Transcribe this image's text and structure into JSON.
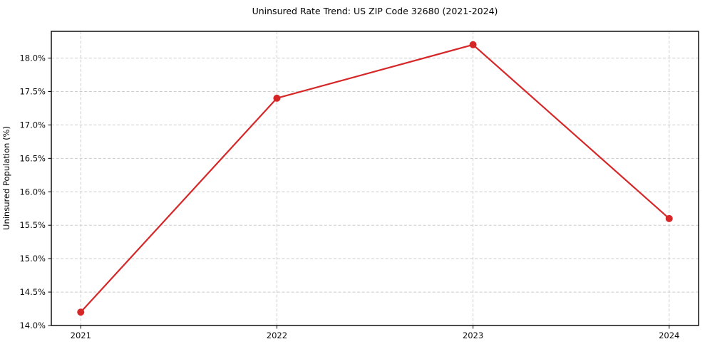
{
  "chart_data": {
    "type": "line",
    "title": "Uninsured Rate Trend: US ZIP Code 32680 (2021-2024)",
    "xlabel": "",
    "ylabel": "Uninsured Population (%)",
    "x": [
      2021,
      2022,
      2023,
      2024
    ],
    "xtick_labels": [
      "2021",
      "2022",
      "2023",
      "2024"
    ],
    "series": [
      {
        "name": "Uninsured rate",
        "values": [
          14.2,
          17.4,
          18.2,
          15.6
        ]
      }
    ],
    "yticks": [
      14.0,
      14.5,
      15.0,
      15.5,
      16.0,
      16.5,
      17.0,
      17.5,
      18.0
    ],
    "ytick_labels": [
      "14.0%",
      "14.5%",
      "15.0%",
      "15.5%",
      "16.0%",
      "16.5%",
      "17.0%",
      "17.5%",
      "18.0%"
    ],
    "xlim": [
      2020.85,
      2024.15
    ],
    "ylim": [
      14.0,
      18.4
    ],
    "grid": true,
    "grid_style": "dashed",
    "legend": "none",
    "line_color": "#d62728",
    "marker": "o",
    "marker_color": "#d62728",
    "background_color": "#ffffff",
    "spine_color": "#000000"
  }
}
